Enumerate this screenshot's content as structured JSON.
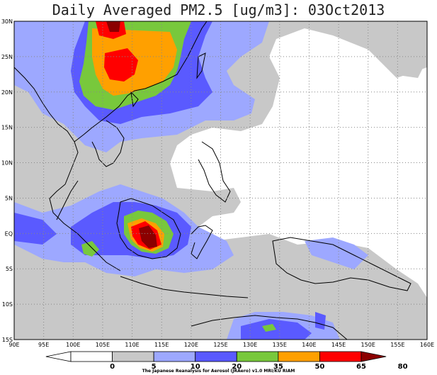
{
  "title": "Daily Averaged PM2.5 [ug/m3]: 03Oct2013",
  "credit": "The Japanese Reanalysis for Aerosol (JRAero) v1.0 MRI/KU RIAM",
  "lat_ticks": [
    "30N",
    "25N",
    "20N",
    "15N",
    "10N",
    "5N",
    "EQ",
    "5S",
    "10S",
    "15S"
  ],
  "lon_ticks": [
    "90E",
    "95E",
    "100E",
    "105E",
    "110E",
    "115E",
    "120E",
    "125E",
    "130E",
    "135E",
    "140E",
    "145E",
    "150E",
    "155E",
    "160E"
  ],
  "colorbar": {
    "labels": [
      "0",
      "5",
      "10",
      "20",
      "35",
      "50",
      "65",
      "80"
    ],
    "colors": [
      "#ffffff",
      "#ffffff",
      "#c8c8c8",
      "#9da8ff",
      "#5a5aff",
      "#78c83c",
      "#ffa000",
      "#ff0000",
      "#8b0000"
    ]
  },
  "colors": {
    "c5": "#c8c8c8",
    "c10": "#9da8ff",
    "c20": "#5a5aff",
    "c35": "#78c83c",
    "c50": "#ffa000",
    "c65": "#ff0000",
    "c80": "#8b0000"
  }
}
